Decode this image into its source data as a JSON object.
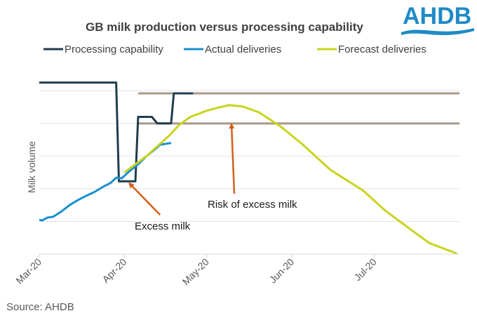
{
  "chart_data": {
    "type": "line",
    "title": "GB milk production versus processing capability",
    "ylabel": "Milk volume",
    "xlabel": "",
    "source": "Source: AHDB",
    "logo_text": "AHDB",
    "x_range": [
      "2020-03-01",
      "2020-08-01"
    ],
    "ylim": [
      0,
      5.5
    ],
    "y_tick_labels_shown": false,
    "grid": "horizontal",
    "legend_position": "top",
    "x_tick_labels": [
      {
        "label": "Mar-20",
        "date": "2020-03-01"
      },
      {
        "label": "Apr-20",
        "date": "2020-04-01"
      },
      {
        "label": "May-20",
        "date": "2020-05-01"
      },
      {
        "label": "Jun-20",
        "date": "2020-06-01"
      },
      {
        "label": "Jul-20",
        "date": "2020-07-01"
      }
    ],
    "y_gridlines": [
      1,
      2,
      3,
      4,
      5
    ],
    "series": [
      {
        "name": "Processing capability",
        "color": "#1f3d4c",
        "points": [
          [
            "2020-03-01",
            5.25
          ],
          [
            "2020-03-29",
            5.25
          ],
          [
            "2020-03-30",
            2.23
          ],
          [
            "2020-04-05",
            2.23
          ],
          [
            "2020-04-06",
            4.2
          ],
          [
            "2020-04-11",
            4.2
          ],
          [
            "2020-04-13",
            4.0
          ],
          [
            "2020-04-18",
            4.0
          ],
          [
            "2020-04-19",
            4.92
          ],
          [
            "2020-04-26",
            4.92
          ]
        ]
      },
      {
        "name": "Actual deliveries",
        "color": "#1a8fcf",
        "points": [
          [
            "2020-03-01",
            1.05
          ],
          [
            "2020-03-02",
            1.03
          ],
          [
            "2020-03-04",
            1.12
          ],
          [
            "2020-03-06",
            1.14
          ],
          [
            "2020-03-09",
            1.3
          ],
          [
            "2020-03-12",
            1.5
          ],
          [
            "2020-03-15",
            1.65
          ],
          [
            "2020-03-18",
            1.78
          ],
          [
            "2020-03-21",
            1.9
          ],
          [
            "2020-03-24",
            2.05
          ],
          [
            "2020-03-27",
            2.18
          ],
          [
            "2020-03-29",
            2.34
          ],
          [
            "2020-03-31",
            2.32
          ],
          [
            "2020-04-03",
            2.55
          ],
          [
            "2020-04-06",
            2.75
          ],
          [
            "2020-04-09",
            3.0
          ],
          [
            "2020-04-12",
            3.2
          ],
          [
            "2020-04-14",
            3.35
          ],
          [
            "2020-04-18",
            3.4
          ]
        ]
      },
      {
        "name": "Forecast deliveries",
        "color": "#c8d41e",
        "points": [
          [
            "2020-04-01",
            2.5
          ],
          [
            "2020-04-05",
            2.75
          ],
          [
            "2020-04-09",
            3.0
          ],
          [
            "2020-04-13",
            3.3
          ],
          [
            "2020-04-17",
            3.6
          ],
          [
            "2020-04-21",
            3.96
          ],
          [
            "2020-04-25",
            4.2
          ],
          [
            "2020-05-01",
            4.39
          ],
          [
            "2020-05-05",
            4.48
          ],
          [
            "2020-05-09",
            4.56
          ],
          [
            "2020-05-14",
            4.52
          ],
          [
            "2020-05-20",
            4.34
          ],
          [
            "2020-05-28",
            3.9
          ],
          [
            "2020-06-05",
            3.35
          ],
          [
            "2020-06-15",
            2.58
          ],
          [
            "2020-06-27",
            1.94
          ],
          [
            "2020-07-05",
            1.33
          ],
          [
            "2020-07-14",
            0.77
          ],
          [
            "2020-07-21",
            0.34
          ],
          [
            "2020-07-31",
            0.02
          ]
        ]
      }
    ],
    "reference_lines": [
      {
        "color": "#a8998a",
        "value": 4.92,
        "from": "2020-04-06",
        "to": "2020-08-01"
      },
      {
        "color": "#a8998a",
        "value": 4.0,
        "from": "2020-04-06",
        "to": "2020-08-01"
      }
    ],
    "annotations": [
      {
        "text": "Excess milk",
        "arrow_color": "#d2601a",
        "arrow_from": [
          "2020-04-14",
          1.2
        ],
        "arrow_to": [
          "2020-04-03",
          2.15
        ]
      },
      {
        "text": "Risk of excess milk",
        "arrow_color": "#d2601a",
        "arrow_from": [
          "2020-05-11",
          1.85
        ],
        "arrow_to": [
          "2020-05-10",
          3.95
        ]
      }
    ]
  }
}
